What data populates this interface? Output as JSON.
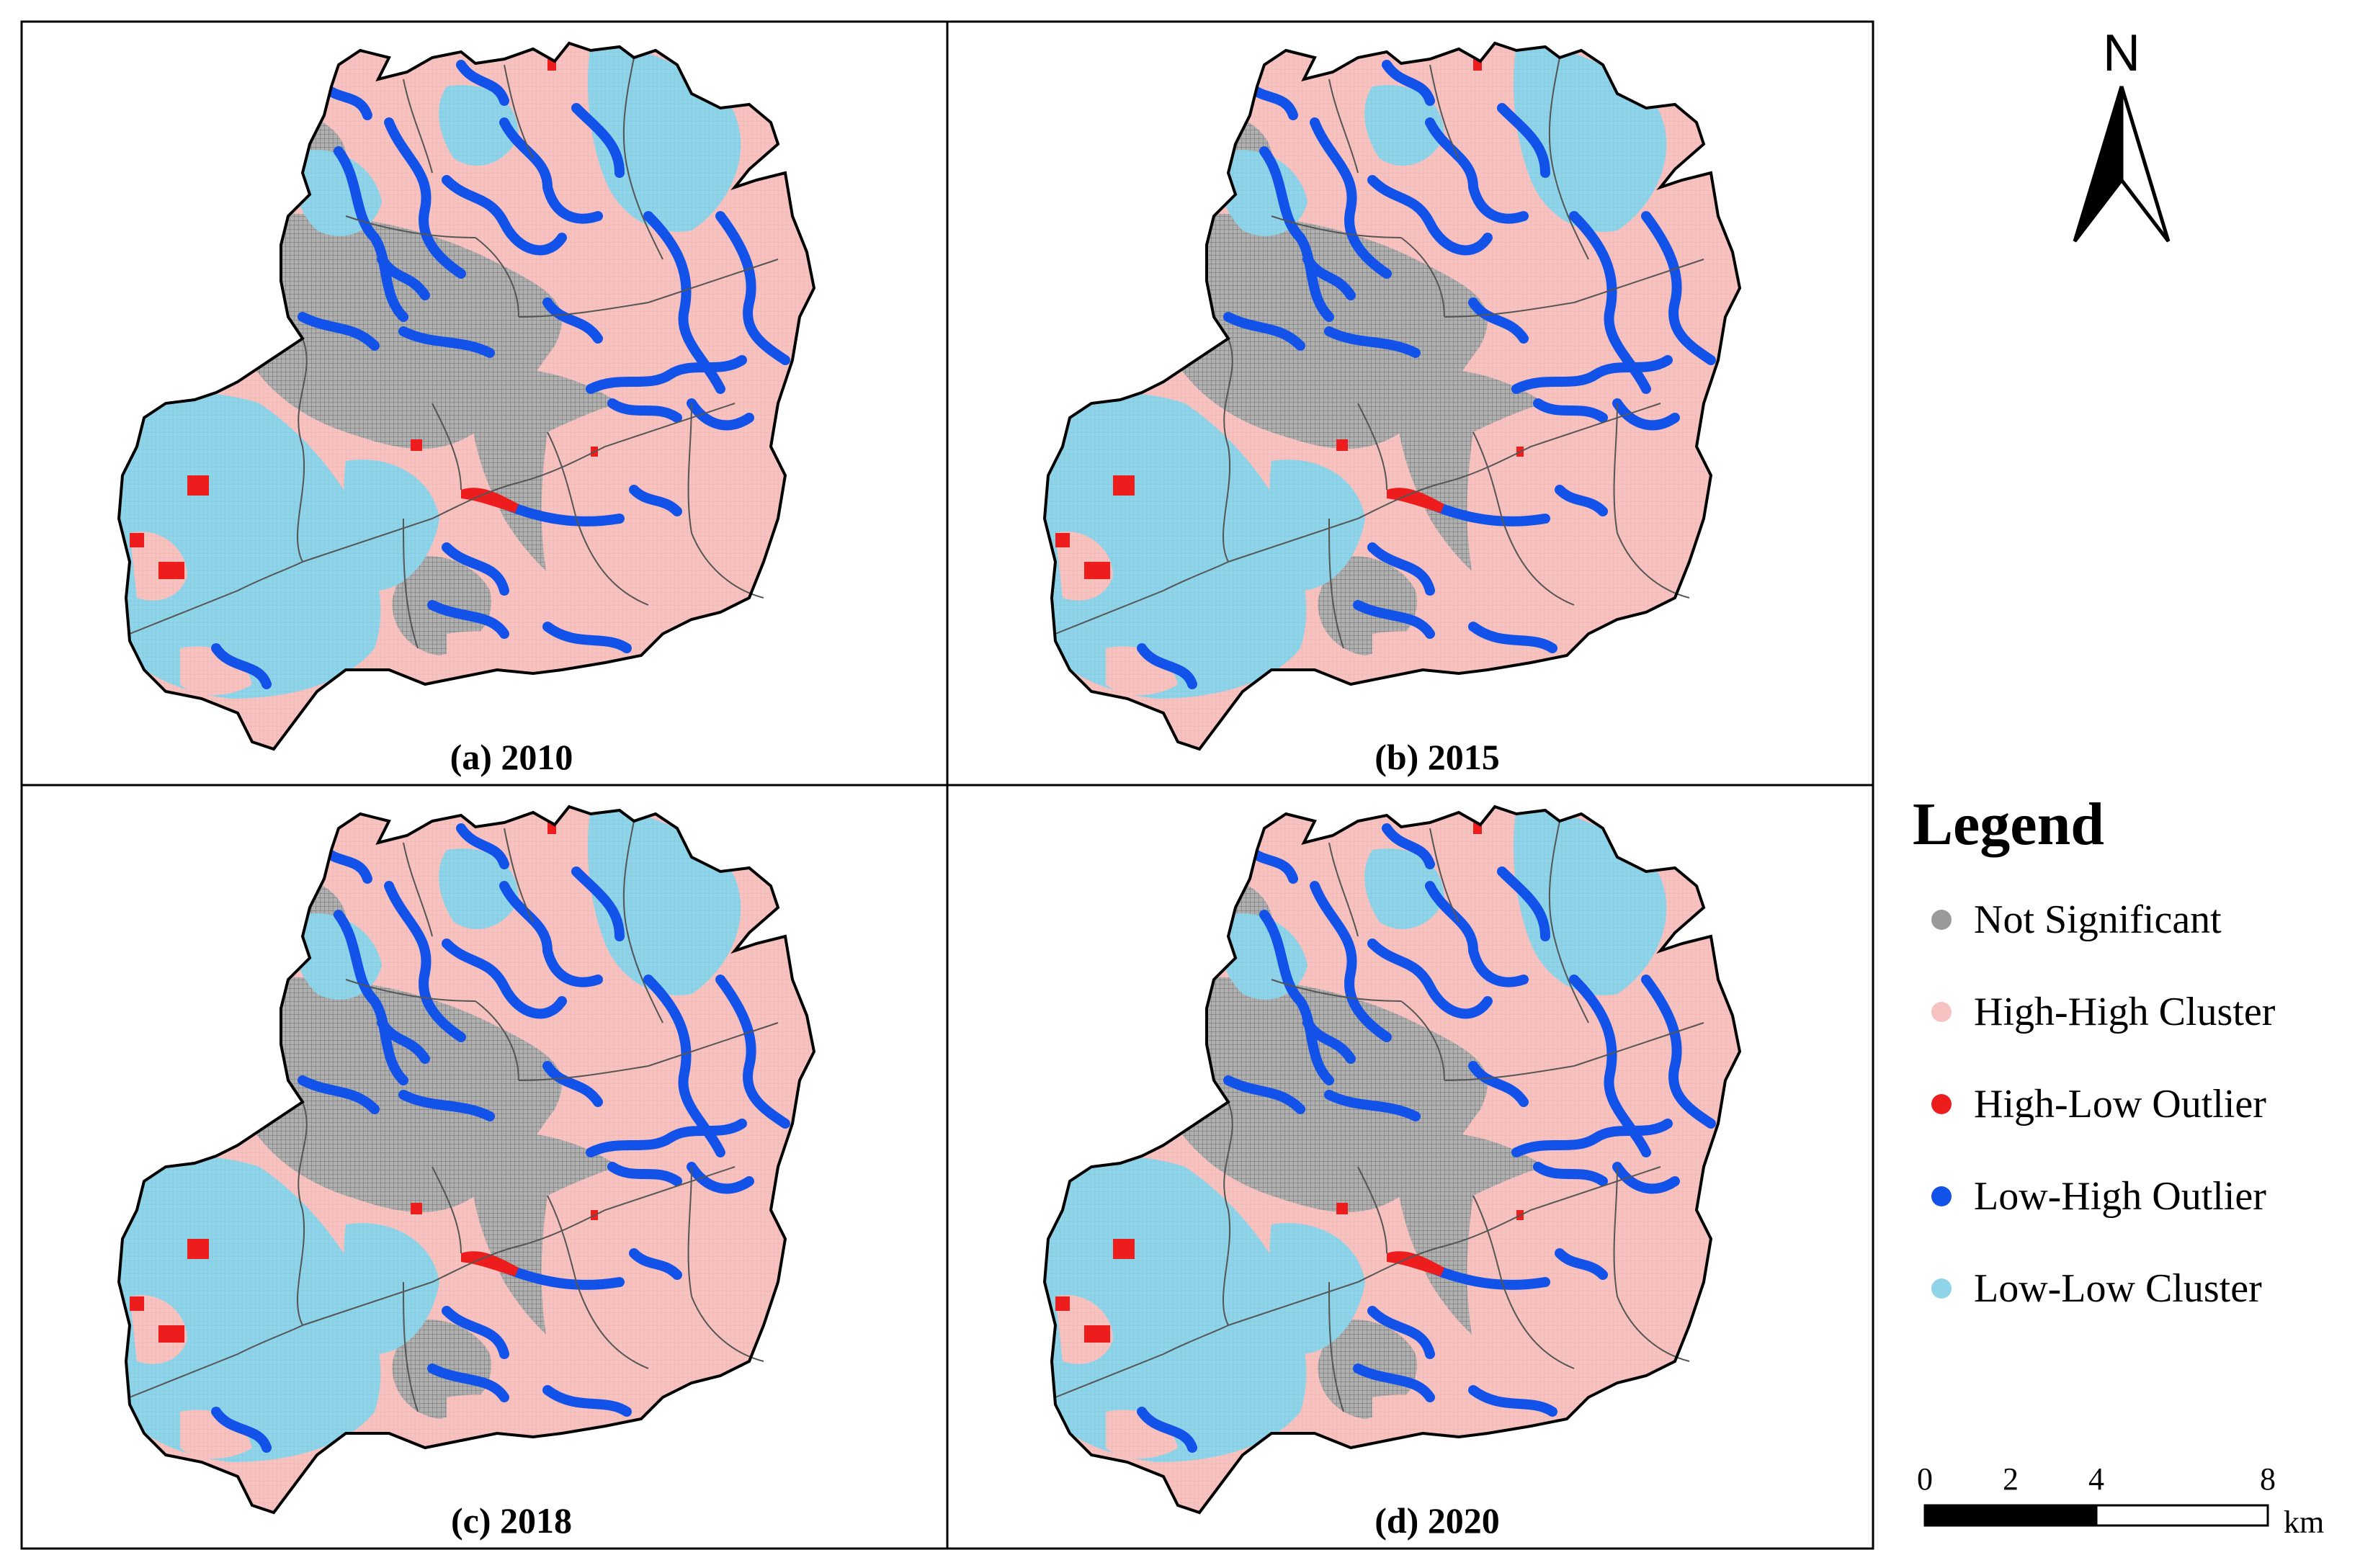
{
  "panels": [
    {
      "label": "(a) 2010"
    },
    {
      "label": "(b) 2015"
    },
    {
      "label": "(c) 2018"
    },
    {
      "label": "(d) 2020"
    }
  ],
  "legend": {
    "title": "Legend",
    "items": [
      {
        "label": "Not Significant",
        "color": "#9a9a9a"
      },
      {
        "label": "High-High Cluster",
        "color": "#f7c3c1"
      },
      {
        "label": "High-Low Outlier",
        "color": "#ee1d1d"
      },
      {
        "label": "Low-High Outlier",
        "color": "#1352e8"
      },
      {
        "label": "Low-Low Cluster",
        "color": "#8fd4e8"
      }
    ]
  },
  "north_arrow": {
    "label": "N"
  },
  "scale_bar": {
    "ticks": [
      "0",
      "2",
      "4",
      "8"
    ],
    "unit": "km"
  },
  "colors": {
    "not_significant": "#9a9a9a",
    "high_high": "#f7c3c1",
    "high_low": "#ee1d1d",
    "low_high": "#1352e8",
    "low_low": "#8fd4e8",
    "frame": "#000000",
    "boundary": "#555555"
  }
}
